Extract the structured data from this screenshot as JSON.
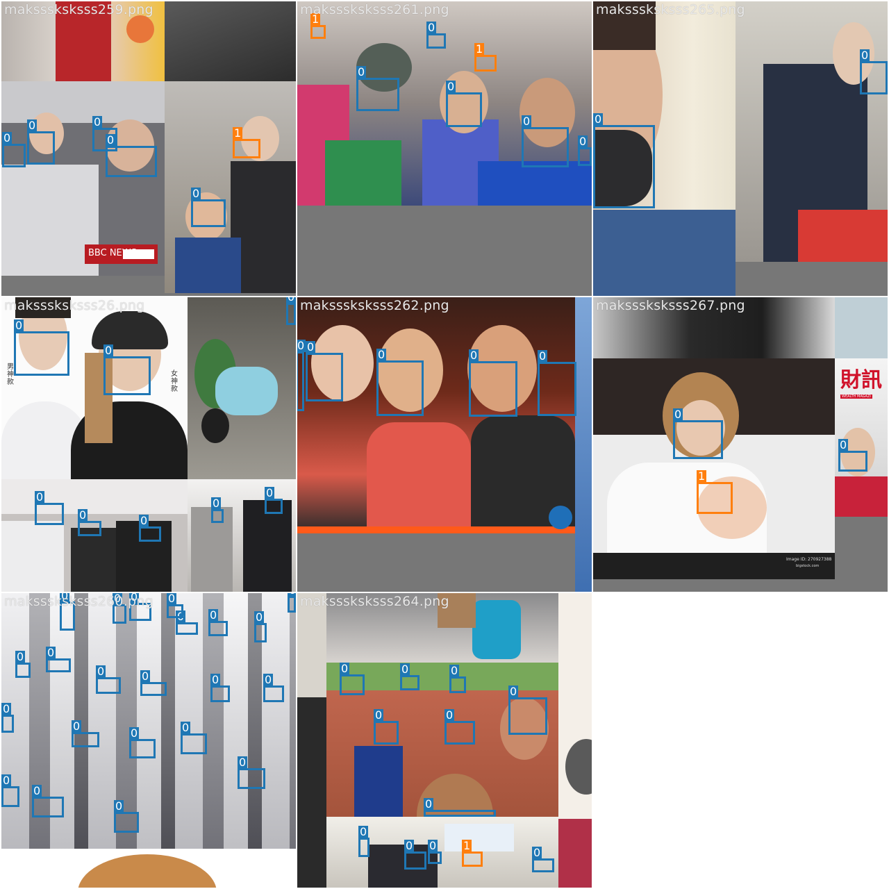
{
  "colors": {
    "class0": "#1f77b4",
    "class1": "#ff7f0e",
    "padding": "#777777",
    "label_text": "#e8e8e8"
  },
  "tiles": [
    {
      "filename": "maksssksksss259.png",
      "boxes": [
        {
          "cls": "0"
        },
        {
          "cls": "0"
        },
        {
          "cls": "0"
        },
        {
          "cls": "0"
        },
        {
          "cls": "1"
        },
        {
          "cls": "0"
        }
      ],
      "overlay_text": "BBC NEWS"
    },
    {
      "filename": "maksssksksss261.png",
      "boxes": [
        {
          "cls": "1"
        },
        {
          "cls": "0"
        },
        {
          "cls": "1"
        },
        {
          "cls": "0"
        },
        {
          "cls": "0"
        },
        {
          "cls": "0"
        },
        {
          "cls": "0"
        }
      ]
    },
    {
      "filename": "maksssksksss265.png",
      "boxes": [
        {
          "cls": "0"
        },
        {
          "cls": "0"
        }
      ]
    },
    {
      "filename": "maksssksksss26.png",
      "boxes": [
        {
          "cls": "0"
        },
        {
          "cls": "0"
        },
        {
          "cls": "0"
        },
        {
          "cls": "0"
        },
        {
          "cls": "0"
        },
        {
          "cls": "0"
        },
        {
          "cls": "0"
        },
        {
          "cls": "0"
        }
      ],
      "overlay_text_left": "男神款",
      "overlay_text_right": "女神款"
    },
    {
      "filename": "maksssksksss262.png",
      "boxes": [
        {
          "cls": "0"
        },
        {
          "cls": "0"
        },
        {
          "cls": "0"
        },
        {
          "cls": "0"
        },
        {
          "cls": "0"
        }
      ]
    },
    {
      "filename": "maksssksksss267.png",
      "boxes": [
        {
          "cls": "0"
        },
        {
          "cls": "1"
        },
        {
          "cls": "0"
        }
      ],
      "overlay_text": "Image ID: 270927388",
      "overlay_text2": "bigstock.com",
      "magazine_text": "財訊",
      "magazine_sub": "WEALTH MAGAZI"
    },
    {
      "filename": "maksssksksss260.png",
      "boxes": [
        {
          "cls": "0"
        },
        {
          "cls": "0"
        },
        {
          "cls": "0"
        },
        {
          "cls": "0"
        },
        {
          "cls": "0"
        },
        {
          "cls": "0"
        },
        {
          "cls": "0"
        },
        {
          "cls": "0"
        },
        {
          "cls": "0"
        },
        {
          "cls": "0"
        },
        {
          "cls": "0"
        },
        {
          "cls": "0"
        },
        {
          "cls": "0"
        },
        {
          "cls": "0"
        },
        {
          "cls": "0"
        },
        {
          "cls": "0"
        },
        {
          "cls": "0"
        },
        {
          "cls": "0"
        },
        {
          "cls": "0"
        },
        {
          "cls": "0"
        },
        {
          "cls": "0"
        },
        {
          "cls": "0"
        }
      ]
    },
    {
      "filename": "maksssksksss264.png",
      "boxes": [
        {
          "cls": "0"
        },
        {
          "cls": "0"
        },
        {
          "cls": "0"
        },
        {
          "cls": "0"
        },
        {
          "cls": "0"
        },
        {
          "cls": "0"
        },
        {
          "cls": "0"
        },
        {
          "cls": "0"
        },
        {
          "cls": "0"
        },
        {
          "cls": "0"
        },
        {
          "cls": "1"
        },
        {
          "cls": "0"
        }
      ]
    }
  ]
}
